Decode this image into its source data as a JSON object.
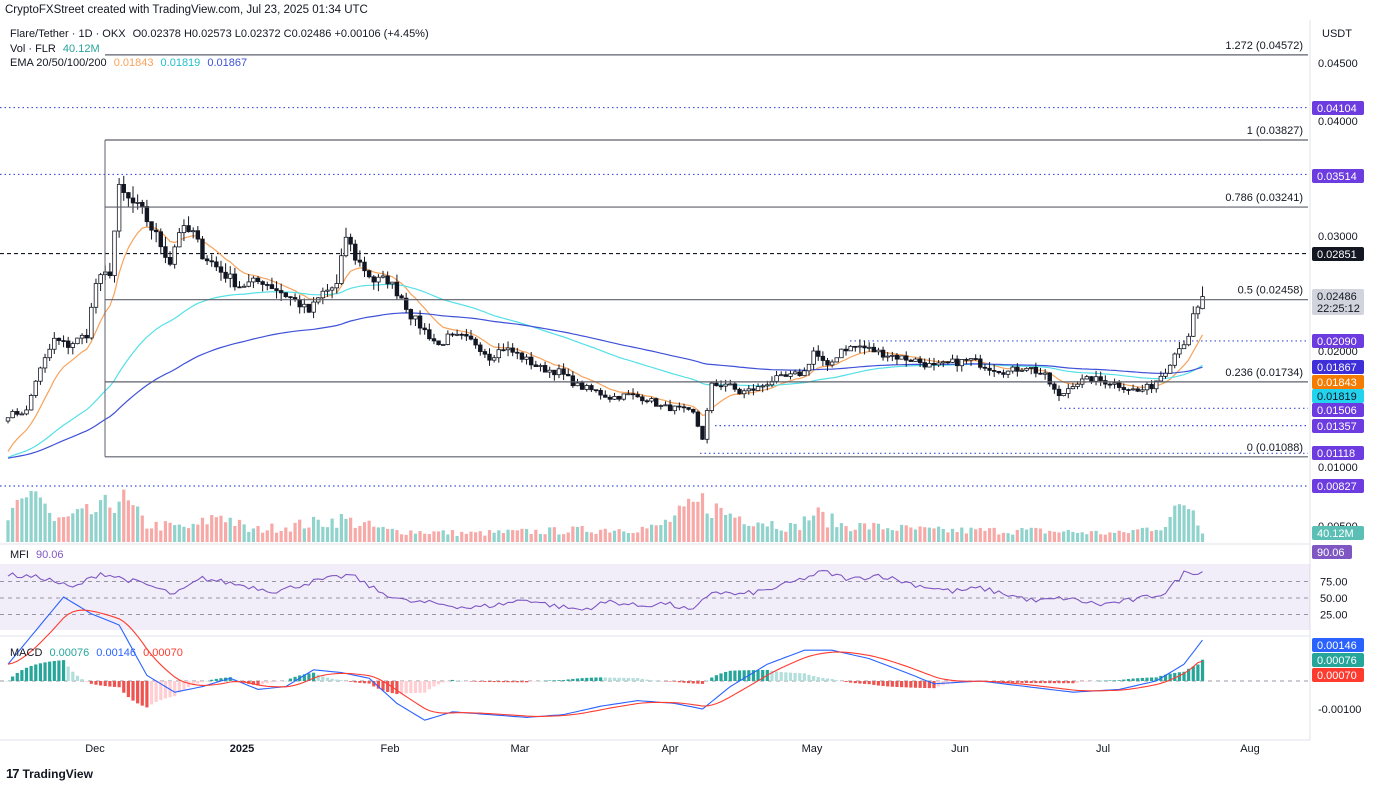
{
  "header": {
    "credit": "CryptoFXStreet created with TradingView.com, Jul 23, 2025 01:34 UTC"
  },
  "legend": {
    "symbol": "Flare/Tether · 1D · OKX",
    "ohlc": "O0.02378 H0.02573 L0.02372 C0.02486 +0.00106 (+4.45%)",
    "vol_label": "Vol · FLR",
    "vol_value": "40.12M",
    "ema_label": "EMA 20/50/100/200",
    "ema20": "0.01843",
    "ema50": "0.01819",
    "ema100": "0.01867",
    "mfi_label": "MFI",
    "mfi_value": "90.06",
    "macd_label": "MACD",
    "macd_hist": "0.00076",
    "macd_line": "0.00146",
    "macd_signal": "0.00070"
  },
  "currency": "USDT",
  "branding": "TradingView",
  "colors": {
    "up": "#26a69a",
    "down": "#ef5350",
    "vol_up": "#8fd3cc",
    "vol_down": "#f7a9a7",
    "ema20": "#f7a35c",
    "ema50": "#55e0e8",
    "ema100": "#3f51d8",
    "mfi": "#7e57c2",
    "macd": "#2962ff",
    "signal": "#ff3b30",
    "fib_level": "#5d606b",
    "hline_purple": "#3f51d8",
    "label_purple": "#6c3ce0"
  },
  "chart_data": {
    "type": "candlestick",
    "title": "Flare/Tether · 1D · OKX",
    "price_axis": {
      "ticks": [
        "0.04500",
        "0.04000",
        "0.03000",
        "0.02000",
        "0.01000",
        "0.00500"
      ]
    },
    "time_axis": {
      "ticks": [
        "Dec",
        "2025",
        "Feb",
        "Mar",
        "Apr",
        "May",
        "Jun",
        "Jul",
        "Aug"
      ]
    },
    "fibonacci": [
      {
        "label": "1.272 (0.04572)",
        "value": 0.04572
      },
      {
        "label": "1 (0.03827)",
        "value": 0.03827
      },
      {
        "label": "0.786 (0.03241)",
        "value": 0.03241
      },
      {
        "label": "0.5 (0.02458)",
        "value": 0.02458
      },
      {
        "label": "0.236 (0.01734)",
        "value": 0.01734
      },
      {
        "label": "0 (0.01088)",
        "value": 0.01088
      }
    ],
    "price_labels": [
      {
        "text": "0.04104",
        "kind": "purple"
      },
      {
        "text": "0.03514",
        "kind": "purple"
      },
      {
        "text": "0.02851",
        "kind": "black"
      },
      {
        "text": "0.02486",
        "kind": "current",
        "sub": "22:25:12"
      },
      {
        "text": "0.02090",
        "kind": "purple"
      },
      {
        "text": "0.01867",
        "kind": "ema100"
      },
      {
        "text": "0.01843",
        "kind": "ema20"
      },
      {
        "text": "0.01819",
        "kind": "ema50"
      },
      {
        "text": "0.01506",
        "kind": "purple"
      },
      {
        "text": "0.01357",
        "kind": "purple"
      },
      {
        "text": "0.01118",
        "kind": "purple"
      },
      {
        "text": "0.00827",
        "kind": "purple"
      },
      {
        "text": "40.12M",
        "kind": "vol"
      }
    ],
    "ohlc_last": {
      "open": 0.02378,
      "high": 0.02573,
      "low": 0.02372,
      "close": 0.02486,
      "change": 0.00106,
      "change_pct": 4.45
    },
    "close_anchors": [
      [
        0,
        0.0145
      ],
      [
        4,
        0.0148
      ],
      [
        6,
        0.0175
      ],
      [
        10,
        0.021
      ],
      [
        13,
        0.0205
      ],
      [
        17,
        0.0215
      ],
      [
        19,
        0.026
      ],
      [
        22,
        0.027
      ],
      [
        24,
        0.0338
      ],
      [
        26,
        0.033
      ],
      [
        29,
        0.032
      ],
      [
        32,
        0.03
      ],
      [
        35,
        0.0278
      ],
      [
        37,
        0.0305
      ],
      [
        40,
        0.0302
      ],
      [
        42,
        0.0285
      ],
      [
        46,
        0.027
      ],
      [
        50,
        0.0258
      ],
      [
        55,
        0.0262
      ],
      [
        58,
        0.0255
      ],
      [
        62,
        0.0245
      ],
      [
        65,
        0.0235
      ],
      [
        68,
        0.0252
      ],
      [
        71,
        0.0258
      ],
      [
        73,
        0.03
      ],
      [
        75,
        0.0282
      ],
      [
        79,
        0.0262
      ],
      [
        82,
        0.0263
      ],
      [
        85,
        0.0248
      ],
      [
        87,
        0.0232
      ],
      [
        90,
        0.0218
      ],
      [
        93,
        0.0205
      ],
      [
        95,
        0.0212
      ],
      [
        98,
        0.0212
      ],
      [
        101,
        0.0207
      ],
      [
        104,
        0.0195
      ],
      [
        107,
        0.0203
      ],
      [
        110,
        0.0197
      ],
      [
        115,
        0.0185
      ],
      [
        119,
        0.0182
      ],
      [
        123,
        0.017
      ],
      [
        127,
        0.0165
      ],
      [
        130,
        0.016
      ],
      [
        134,
        0.0162
      ],
      [
        138,
        0.0159
      ],
      [
        141,
        0.0152
      ],
      [
        145,
        0.015
      ],
      [
        148,
        0.0146
      ],
      [
        150,
        0.0125
      ],
      [
        152,
        0.017
      ],
      [
        155,
        0.0172
      ],
      [
        158,
        0.0164
      ],
      [
        162,
        0.0168
      ],
      [
        165,
        0.0175
      ],
      [
        169,
        0.0178
      ],
      [
        172,
        0.0182
      ],
      [
        174,
        0.02
      ],
      [
        177,
        0.0185
      ],
      [
        180,
        0.0202
      ],
      [
        184,
        0.0204
      ],
      [
        188,
        0.0199
      ],
      [
        192,
        0.0195
      ],
      [
        196,
        0.0192
      ],
      [
        200,
        0.0186
      ],
      [
        204,
        0.019
      ],
      [
        208,
        0.0192
      ],
      [
        212,
        0.0186
      ],
      [
        216,
        0.0182
      ],
      [
        220,
        0.0187
      ],
      [
        224,
        0.0178
      ],
      [
        227,
        0.016
      ],
      [
        230,
        0.0172
      ],
      [
        234,
        0.0176
      ],
      [
        238,
        0.0173
      ],
      [
        242,
        0.0168
      ],
      [
        244,
        0.0165
      ],
      [
        247,
        0.017
      ],
      [
        250,
        0.0184
      ],
      [
        253,
        0.0205
      ],
      [
        255,
        0.021
      ],
      [
        256,
        0.0231
      ],
      [
        257,
        0.0237
      ],
      [
        258,
        0.02486
      ]
    ],
    "volume_anchors": [
      [
        0,
        0.4
      ],
      [
        4,
        0.7
      ],
      [
        6,
        1.0
      ],
      [
        10,
        0.35
      ],
      [
        20,
        0.55
      ],
      [
        24,
        0.8
      ],
      [
        30,
        0.3
      ],
      [
        40,
        0.25
      ],
      [
        46,
        0.5
      ],
      [
        52,
        0.2
      ],
      [
        68,
        0.35
      ],
      [
        72,
        0.4
      ],
      [
        82,
        0.2
      ],
      [
        100,
        0.15
      ],
      [
        120,
        0.2
      ],
      [
        140,
        0.25
      ],
      [
        150,
        0.7
      ],
      [
        155,
        0.5
      ],
      [
        170,
        0.25
      ],
      [
        174,
        0.5
      ],
      [
        180,
        0.3
      ],
      [
        200,
        0.2
      ],
      [
        220,
        0.2
      ],
      [
        240,
        0.15
      ],
      [
        250,
        0.3
      ],
      [
        254,
        0.7
      ],
      [
        256,
        0.6
      ],
      [
        258,
        0.2
      ]
    ],
    "mfi": {
      "range": [
        0,
        100
      ],
      "levels": [
        75,
        50,
        25
      ],
      "tick_labels": [
        "75.00",
        "50.00",
        "25.00"
      ],
      "last": 90.06
    },
    "macd": {
      "tick_labels": [
        "-0.00100"
      ],
      "last_macd": 0.00146,
      "last_signal": 0.0007,
      "last_hist": 0.00076
    }
  }
}
